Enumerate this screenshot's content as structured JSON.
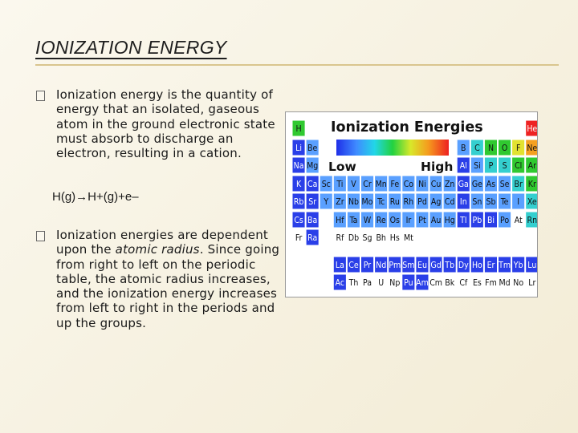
{
  "slide": {
    "title": "IONIZATION ENERGY",
    "bullet1": "Ionization energy is the quantity of energy that an isolated, gaseous atom in the ground electronic state must absorb to discharge an electron, resulting in a cation.",
    "equation": "H(g)→H+(g)+e–",
    "bullet2_a": "Ionization energies are dependent upon the ",
    "bullet2_em": "atomic radius",
    "bullet2_b": ". Since going from right to left on the periodic table, the atomic radius increases, and the ionization energy increases from left to right in the periods and up the groups."
  },
  "table": {
    "title": "Ionization Energies",
    "low_label": "Low",
    "high_label": "High",
    "colors": {
      "blue": "#2a3fe8",
      "lightblue": "#5aa0ff",
      "cyan": "#34cfcf",
      "green": "#30c930",
      "yellow": "#e2e230",
      "orange": "#f5a020",
      "red": "#ee2222",
      "white": "#ffffff"
    },
    "elements": [
      {
        "s": "H",
        "r": 0,
        "c": 0,
        "k": "green"
      },
      {
        "s": "He",
        "r": 0,
        "c": 17,
        "k": "red"
      },
      {
        "s": "Li",
        "r": 1,
        "c": 0,
        "k": "blue"
      },
      {
        "s": "Be",
        "r": 1,
        "c": 1,
        "k": "lightblue"
      },
      {
        "s": "B",
        "r": 1,
        "c": 12,
        "k": "lightblue"
      },
      {
        "s": "C",
        "r": 1,
        "c": 13,
        "k": "cyan"
      },
      {
        "s": "N",
        "r": 1,
        "c": 14,
        "k": "green"
      },
      {
        "s": "O",
        "r": 1,
        "c": 15,
        "k": "green"
      },
      {
        "s": "F",
        "r": 1,
        "c": 16,
        "k": "yellow"
      },
      {
        "s": "Ne",
        "r": 1,
        "c": 17,
        "k": "orange"
      },
      {
        "s": "Na",
        "r": 2,
        "c": 0,
        "k": "blue"
      },
      {
        "s": "Mg",
        "r": 2,
        "c": 1,
        "k": "lightblue"
      },
      {
        "s": "Al",
        "r": 2,
        "c": 12,
        "k": "blue"
      },
      {
        "s": "Si",
        "r": 2,
        "c": 13,
        "k": "lightblue"
      },
      {
        "s": "P",
        "r": 2,
        "c": 14,
        "k": "cyan"
      },
      {
        "s": "S",
        "r": 2,
        "c": 15,
        "k": "cyan"
      },
      {
        "s": "Cl",
        "r": 2,
        "c": 16,
        "k": "green"
      },
      {
        "s": "Ar",
        "r": 2,
        "c": 17,
        "k": "green"
      },
      {
        "s": "K",
        "r": 3,
        "c": 0,
        "k": "blue"
      },
      {
        "s": "Ca",
        "r": 3,
        "c": 1,
        "k": "blue"
      },
      {
        "s": "Sc",
        "r": 3,
        "c": 2,
        "k": "lightblue"
      },
      {
        "s": "Ti",
        "r": 3,
        "c": 3,
        "k": "lightblue"
      },
      {
        "s": "V",
        "r": 3,
        "c": 4,
        "k": "lightblue"
      },
      {
        "s": "Cr",
        "r": 3,
        "c": 5,
        "k": "lightblue"
      },
      {
        "s": "Mn",
        "r": 3,
        "c": 6,
        "k": "lightblue"
      },
      {
        "s": "Fe",
        "r": 3,
        "c": 7,
        "k": "lightblue"
      },
      {
        "s": "Co",
        "r": 3,
        "c": 8,
        "k": "lightblue"
      },
      {
        "s": "Ni",
        "r": 3,
        "c": 9,
        "k": "lightblue"
      },
      {
        "s": "Cu",
        "r": 3,
        "c": 10,
        "k": "lightblue"
      },
      {
        "s": "Zn",
        "r": 3,
        "c": 11,
        "k": "lightblue"
      },
      {
        "s": "Ga",
        "r": 3,
        "c": 12,
        "k": "blue"
      },
      {
        "s": "Ge",
        "r": 3,
        "c": 13,
        "k": "lightblue"
      },
      {
        "s": "As",
        "r": 3,
        "c": 14,
        "k": "lightblue"
      },
      {
        "s": "Se",
        "r": 3,
        "c": 15,
        "k": "lightblue"
      },
      {
        "s": "Br",
        "r": 3,
        "c": 16,
        "k": "cyan"
      },
      {
        "s": "Kr",
        "r": 3,
        "c": 17,
        "k": "green"
      },
      {
        "s": "Rb",
        "r": 4,
        "c": 0,
        "k": "blue"
      },
      {
        "s": "Sr",
        "r": 4,
        "c": 1,
        "k": "blue"
      },
      {
        "s": "Y",
        "r": 4,
        "c": 2,
        "k": "lightblue"
      },
      {
        "s": "Zr",
        "r": 4,
        "c": 3,
        "k": "lightblue"
      },
      {
        "s": "Nb",
        "r": 4,
        "c": 4,
        "k": "lightblue"
      },
      {
        "s": "Mo",
        "r": 4,
        "c": 5,
        "k": "lightblue"
      },
      {
        "s": "Tc",
        "r": 4,
        "c": 6,
        "k": "lightblue"
      },
      {
        "s": "Ru",
        "r": 4,
        "c": 7,
        "k": "lightblue"
      },
      {
        "s": "Rh",
        "r": 4,
        "c": 8,
        "k": "lightblue"
      },
      {
        "s": "Pd",
        "r": 4,
        "c": 9,
        "k": "lightblue"
      },
      {
        "s": "Ag",
        "r": 4,
        "c": 10,
        "k": "lightblue"
      },
      {
        "s": "Cd",
        "r": 4,
        "c": 11,
        "k": "lightblue"
      },
      {
        "s": "In",
        "r": 4,
        "c": 12,
        "k": "blue"
      },
      {
        "s": "Sn",
        "r": 4,
        "c": 13,
        "k": "lightblue"
      },
      {
        "s": "Sb",
        "r": 4,
        "c": 14,
        "k": "lightblue"
      },
      {
        "s": "Te",
        "r": 4,
        "c": 15,
        "k": "lightblue"
      },
      {
        "s": "I",
        "r": 4,
        "c": 16,
        "k": "lightblue"
      },
      {
        "s": "Xe",
        "r": 4,
        "c": 17,
        "k": "cyan"
      },
      {
        "s": "Cs",
        "r": 5,
        "c": 0,
        "k": "blue"
      },
      {
        "s": "Ba",
        "r": 5,
        "c": 1,
        "k": "blue"
      },
      {
        "s": "Hf",
        "r": 5,
        "c": 3,
        "k": "lightblue"
      },
      {
        "s": "Ta",
        "r": 5,
        "c": 4,
        "k": "lightblue"
      },
      {
        "s": "W",
        "r": 5,
        "c": 5,
        "k": "lightblue"
      },
      {
        "s": "Re",
        "r": 5,
        "c": 6,
        "k": "lightblue"
      },
      {
        "s": "Os",
        "r": 5,
        "c": 7,
        "k": "lightblue"
      },
      {
        "s": "Ir",
        "r": 5,
        "c": 8,
        "k": "lightblue"
      },
      {
        "s": "Pt",
        "r": 5,
        "c": 9,
        "k": "lightblue"
      },
      {
        "s": "Au",
        "r": 5,
        "c": 10,
        "k": "lightblue"
      },
      {
        "s": "Hg",
        "r": 5,
        "c": 11,
        "k": "lightblue"
      },
      {
        "s": "Tl",
        "r": 5,
        "c": 12,
        "k": "blue"
      },
      {
        "s": "Pb",
        "r": 5,
        "c": 13,
        "k": "blue"
      },
      {
        "s": "Bi",
        "r": 5,
        "c": 14,
        "k": "blue"
      },
      {
        "s": "Po",
        "r": 5,
        "c": 15,
        "k": "lightblue"
      },
      {
        "s": "At",
        "r": 5,
        "c": 16,
        "k": "white"
      },
      {
        "s": "Rn",
        "r": 5,
        "c": 17,
        "k": "cyan"
      },
      {
        "s": "Fr",
        "r": 6,
        "c": 0,
        "k": "white"
      },
      {
        "s": "Ra",
        "r": 6,
        "c": 1,
        "k": "blue"
      },
      {
        "s": "Rf",
        "r": 6,
        "c": 3,
        "k": "white"
      },
      {
        "s": "Db",
        "r": 6,
        "c": 4,
        "k": "white"
      },
      {
        "s": "Sg",
        "r": 6,
        "c": 5,
        "k": "white"
      },
      {
        "s": "Bh",
        "r": 6,
        "c": 6,
        "k": "white"
      },
      {
        "s": "Hs",
        "r": 6,
        "c": 7,
        "k": "white"
      },
      {
        "s": "Mt",
        "r": 6,
        "c": 8,
        "k": "white"
      },
      {
        "s": "La",
        "r": 7,
        "c": 3,
        "k": "blue"
      },
      {
        "s": "Ce",
        "r": 7,
        "c": 4,
        "k": "blue"
      },
      {
        "s": "Pr",
        "r": 7,
        "c": 5,
        "k": "blue"
      },
      {
        "s": "Nd",
        "r": 7,
        "c": 6,
        "k": "blue"
      },
      {
        "s": "Pm",
        "r": 7,
        "c": 7,
        "k": "blue"
      },
      {
        "s": "Sm",
        "r": 7,
        "c": 8,
        "k": "blue"
      },
      {
        "s": "Eu",
        "r": 7,
        "c": 9,
        "k": "blue"
      },
      {
        "s": "Gd",
        "r": 7,
        "c": 10,
        "k": "blue"
      },
      {
        "s": "Tb",
        "r": 7,
        "c": 11,
        "k": "blue"
      },
      {
        "s": "Dy",
        "r": 7,
        "c": 12,
        "k": "blue"
      },
      {
        "s": "Ho",
        "r": 7,
        "c": 13,
        "k": "blue"
      },
      {
        "s": "Er",
        "r": 7,
        "c": 14,
        "k": "blue"
      },
      {
        "s": "Tm",
        "r": 7,
        "c": 15,
        "k": "blue"
      },
      {
        "s": "Yb",
        "r": 7,
        "c": 16,
        "k": "blue"
      },
      {
        "s": "Lu",
        "r": 7,
        "c": 17,
        "k": "blue"
      },
      {
        "s": "Ac",
        "r": 8,
        "c": 3,
        "k": "blue"
      },
      {
        "s": "Th",
        "r": 8,
        "c": 4,
        "k": "white"
      },
      {
        "s": "Pa",
        "r": 8,
        "c": 5,
        "k": "white"
      },
      {
        "s": "U",
        "r": 8,
        "c": 6,
        "k": "white"
      },
      {
        "s": "Np",
        "r": 8,
        "c": 7,
        "k": "white"
      },
      {
        "s": "Pu",
        "r": 8,
        "c": 8,
        "k": "blue"
      },
      {
        "s": "Am",
        "r": 8,
        "c": 9,
        "k": "blue"
      },
      {
        "s": "Cm",
        "r": 8,
        "c": 10,
        "k": "white"
      },
      {
        "s": "Bk",
        "r": 8,
        "c": 11,
        "k": "white"
      },
      {
        "s": "Cf",
        "r": 8,
        "c": 12,
        "k": "white"
      },
      {
        "s": "Es",
        "r": 8,
        "c": 13,
        "k": "white"
      },
      {
        "s": "Fm",
        "r": 8,
        "c": 14,
        "k": "white"
      },
      {
        "s": "Md",
        "r": 8,
        "c": 15,
        "k": "white"
      },
      {
        "s": "No",
        "r": 8,
        "c": 16,
        "k": "white"
      },
      {
        "s": "Lr",
        "r": 8,
        "c": 17,
        "k": "white"
      }
    ]
  }
}
